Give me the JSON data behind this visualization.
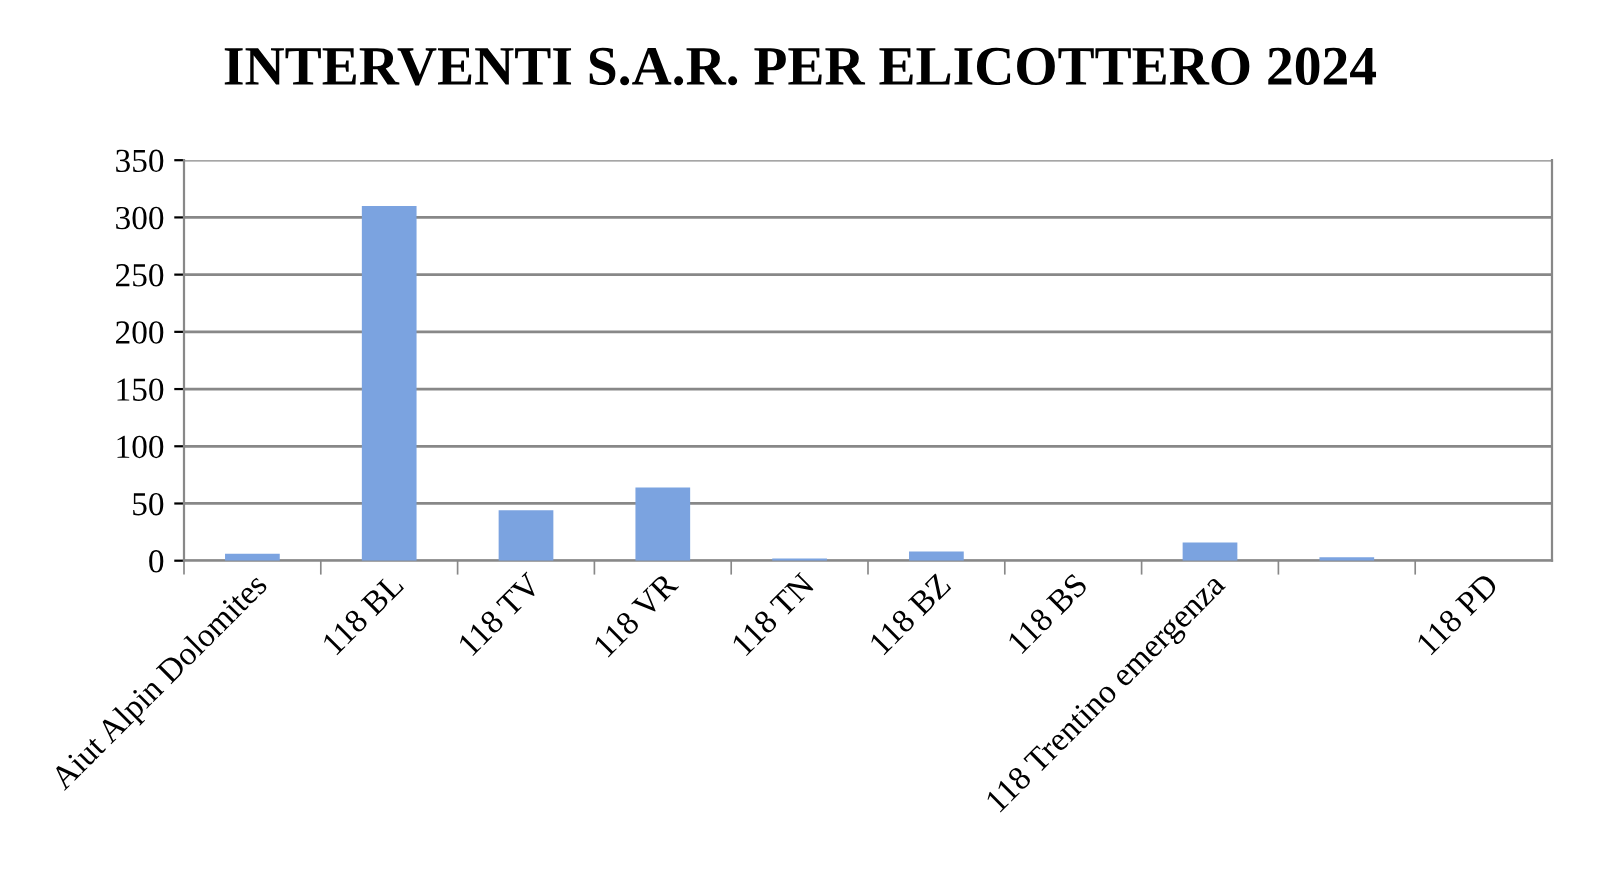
{
  "chart_data": {
    "type": "bar",
    "title": "INTERVENTI S.A.R. PER ELICOTTERO 2024",
    "categories": [
      "Aiut Alpin Dolomites",
      "118 BL",
      "118 TV",
      "118 VR",
      "118 TN",
      "118 BZ",
      "118 BS",
      "118 Trentino emergenza",
      null,
      "118 PD"
    ],
    "values": [
      6,
      310,
      44,
      64,
      2,
      8,
      0,
      16,
      3,
      0
    ],
    "color": "#7ba3e0",
    "ylim": [
      0,
      350
    ],
    "yticks": [
      0,
      50,
      100,
      150,
      200,
      250,
      300,
      350
    ],
    "grid": "y"
  }
}
